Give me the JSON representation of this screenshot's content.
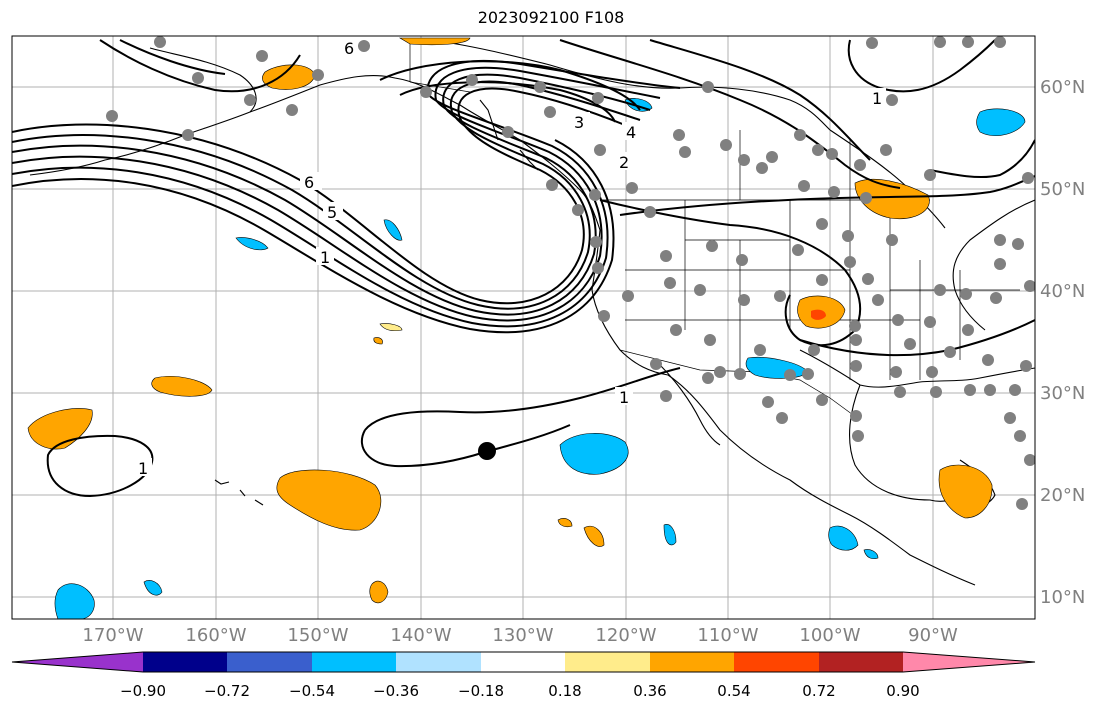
{
  "title": "2023092100 F108",
  "map": {
    "lon_labels": [
      "170°W",
      "160°W",
      "150°W",
      "140°W",
      "130°W",
      "120°W",
      "110°W",
      "100°W",
      "90°W"
    ],
    "lat_labels": [
      "60°N",
      "50°N",
      "40°N",
      "30°N",
      "20°N",
      "10°N"
    ],
    "contour_labels": [
      "6",
      "5",
      "1",
      "3",
      "4",
      "2",
      "1",
      "1",
      "1",
      "6"
    ],
    "grid": true,
    "label_color": "#808080",
    "marker": "black dot near 24°N 134°W",
    "station_color": "#808080"
  },
  "colorbar": {
    "ticks": [
      "−0.90",
      "−0.72",
      "−0.54",
      "−0.36",
      "−0.18",
      "0.18",
      "0.36",
      "0.54",
      "0.72",
      "0.90"
    ],
    "colors": [
      "#9932cc",
      "#00008b",
      "#3a5fcd",
      "#00bfff",
      "#b0e2ff",
      "#ffffff",
      "#ffec8b",
      "#ffa500",
      "#ff4500",
      "#b22222",
      "#ff88aa"
    ]
  }
}
